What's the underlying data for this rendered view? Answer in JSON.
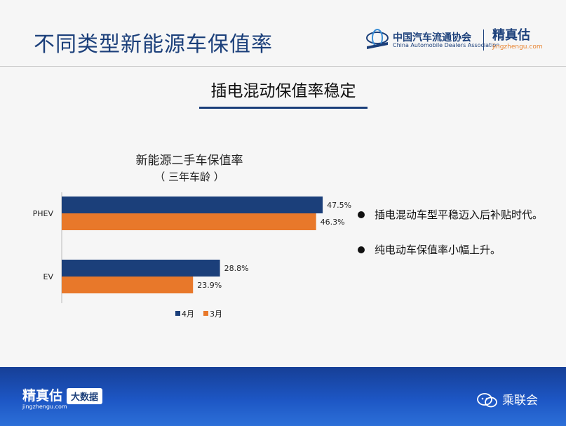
{
  "slide": {
    "title": "不同类型新能源车保值率",
    "section_title": "插电混动保值率稳定"
  },
  "logos": {
    "cada_name": "中国汽车流通协会",
    "cada_sub": "China Automobile Dealers Association",
    "jzg_name": "精真估",
    "jzg_url": "jingzhengu.com"
  },
  "bullets": [
    "插电混动车型平稳迈入后补贴时代。",
    "纯电动车保值率小幅上升。"
  ],
  "footer": {
    "brand": "精真估",
    "url": "jingzhengu.com",
    "badge": "大数据",
    "wechat": "乘联会"
  },
  "colors": {
    "april": "#1b3f7a",
    "march": "#e8782a",
    "footer": "#1d56c4"
  },
  "chart_data": {
    "type": "bar",
    "orientation": "horizontal",
    "title": "新能源二手车保值率",
    "subtitle": "（ 三年车龄 ）",
    "categories": [
      "PHEV",
      "EV"
    ],
    "series": [
      {
        "name": "4月",
        "values": [
          47.5,
          28.8
        ],
        "labels": [
          "47.5%",
          "28.8%"
        ]
      },
      {
        "name": "3月",
        "values": [
          46.3,
          23.9
        ],
        "labels": [
          "46.3%",
          "23.9%"
        ]
      }
    ],
    "xlim": [
      0,
      60
    ],
    "grid": false,
    "legend": "bottom"
  }
}
